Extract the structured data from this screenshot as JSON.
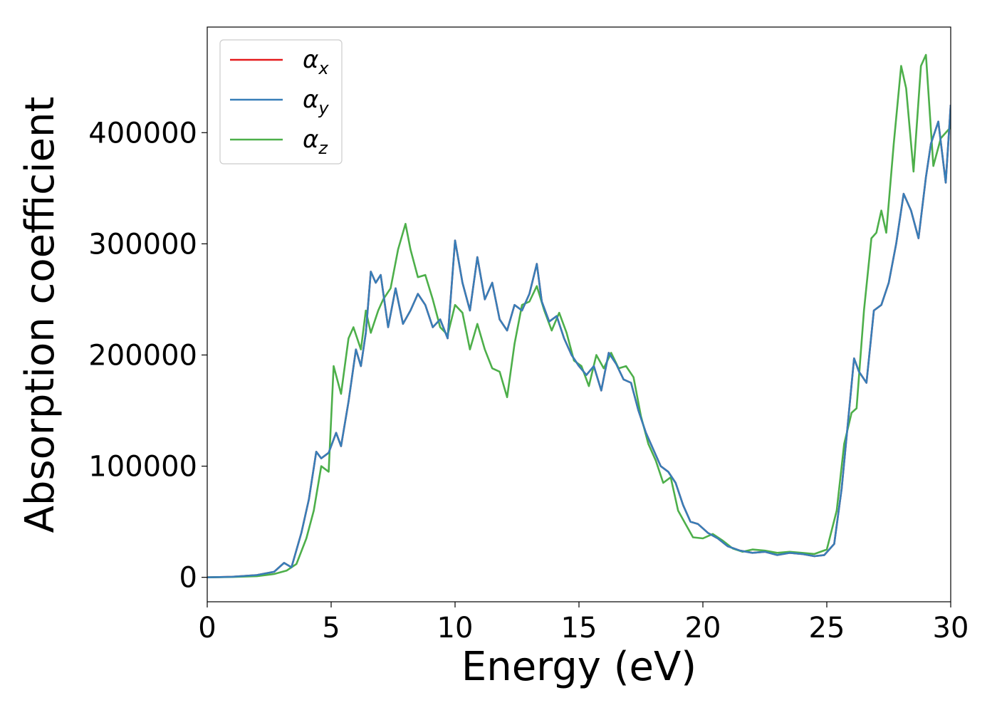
{
  "chart_data": {
    "type": "line",
    "title": "",
    "xlabel": "Energy (eV)",
    "ylabel": "Absorption coefficient",
    "xlim": [
      0,
      30
    ],
    "ylim": [
      -22000,
      495000
    ],
    "xticks": [
      0,
      5,
      10,
      15,
      20,
      25,
      30
    ],
    "yticks": [
      0,
      100000,
      200000,
      300000,
      400000
    ],
    "grid": false,
    "legend": {
      "position": "top-left",
      "frame": true
    },
    "series": [
      {
        "name": "α_x",
        "color": "#e41a1c",
        "x": [
          0,
          1,
          2,
          2.7,
          3.1,
          3.4,
          3.8,
          4.1,
          4.4,
          4.6,
          4.9,
          5.2,
          5.4,
          5.7,
          6.0,
          6.2,
          6.4,
          6.6,
          6.8,
          7.0,
          7.3,
          7.6,
          7.9,
          8.2,
          8.5,
          8.8,
          9.1,
          9.4,
          9.7,
          10.0,
          10.3,
          10.6,
          10.9,
          11.2,
          11.5,
          11.8,
          12.1,
          12.4,
          12.7,
          13.0,
          13.3,
          13.5,
          13.8,
          14.1,
          14.4,
          14.7,
          15.0,
          15.3,
          15.6,
          15.9,
          16.2,
          16.5,
          16.8,
          17.1,
          17.4,
          17.7,
          18.0,
          18.3,
          18.6,
          18.9,
          19.2,
          19.5,
          19.8,
          20.2,
          20.6,
          21.0,
          21.5,
          22.0,
          22.5,
          23.0,
          23.5,
          24.0,
          24.5,
          24.9,
          25.3,
          25.6,
          25.9,
          26.1,
          26.3,
          26.6,
          26.9,
          27.2,
          27.5,
          27.8,
          28.1,
          28.4,
          28.7,
          29.0,
          29.2,
          29.5,
          29.8,
          30.0
        ],
        "values": [
          0,
          500,
          2000,
          5000,
          13000,
          9000,
          40000,
          70000,
          113000,
          107000,
          112000,
          130000,
          118000,
          158000,
          205000,
          190000,
          220000,
          275000,
          265000,
          272000,
          225000,
          260000,
          228000,
          240000,
          255000,
          245000,
          225000,
          232000,
          215000,
          303000,
          265000,
          240000,
          288000,
          250000,
          265000,
          232000,
          222000,
          245000,
          240000,
          255000,
          282000,
          248000,
          230000,
          235000,
          215000,
          200000,
          190000,
          182000,
          190000,
          168000,
          202000,
          192000,
          178000,
          175000,
          150000,
          130000,
          115000,
          100000,
          95000,
          85000,
          65000,
          50000,
          48000,
          40000,
          35000,
          28000,
          24000,
          22000,
          23000,
          20000,
          22000,
          21000,
          19000,
          20000,
          30000,
          80000,
          150000,
          197000,
          185000,
          175000,
          240000,
          245000,
          265000,
          300000,
          345000,
          330000,
          305000,
          360000,
          390000,
          410000,
          355000,
          425000
        ]
      },
      {
        "name": "α_y",
        "color": "#377eb8",
        "x": [
          0,
          1,
          2,
          2.7,
          3.1,
          3.4,
          3.8,
          4.1,
          4.4,
          4.6,
          4.9,
          5.2,
          5.4,
          5.7,
          6.0,
          6.2,
          6.4,
          6.6,
          6.8,
          7.0,
          7.3,
          7.6,
          7.9,
          8.2,
          8.5,
          8.8,
          9.1,
          9.4,
          9.7,
          10.0,
          10.3,
          10.6,
          10.9,
          11.2,
          11.5,
          11.8,
          12.1,
          12.4,
          12.7,
          13.0,
          13.3,
          13.5,
          13.8,
          14.1,
          14.4,
          14.7,
          15.0,
          15.3,
          15.6,
          15.9,
          16.2,
          16.5,
          16.8,
          17.1,
          17.4,
          17.7,
          18.0,
          18.3,
          18.6,
          18.9,
          19.2,
          19.5,
          19.8,
          20.2,
          20.6,
          21.0,
          21.5,
          22.0,
          22.5,
          23.0,
          23.5,
          24.0,
          24.5,
          24.9,
          25.3,
          25.6,
          25.9,
          26.1,
          26.3,
          26.6,
          26.9,
          27.2,
          27.5,
          27.8,
          28.1,
          28.4,
          28.7,
          29.0,
          29.2,
          29.5,
          29.8,
          30.0
        ],
        "values": [
          0,
          500,
          2000,
          5000,
          13000,
          9000,
          40000,
          70000,
          113000,
          107000,
          112000,
          130000,
          118000,
          158000,
          205000,
          190000,
          220000,
          275000,
          265000,
          272000,
          225000,
          260000,
          228000,
          240000,
          255000,
          245000,
          225000,
          232000,
          215000,
          303000,
          265000,
          240000,
          288000,
          250000,
          265000,
          232000,
          222000,
          245000,
          240000,
          255000,
          282000,
          248000,
          230000,
          235000,
          215000,
          200000,
          190000,
          182000,
          190000,
          168000,
          202000,
          192000,
          178000,
          175000,
          150000,
          130000,
          115000,
          100000,
          95000,
          85000,
          65000,
          50000,
          48000,
          40000,
          35000,
          28000,
          24000,
          22000,
          23000,
          20000,
          22000,
          21000,
          19000,
          20000,
          30000,
          80000,
          150000,
          197000,
          185000,
          175000,
          240000,
          245000,
          265000,
          300000,
          345000,
          330000,
          305000,
          360000,
          390000,
          410000,
          355000,
          425000
        ]
      },
      {
        "name": "α_z",
        "color": "#4daf4a",
        "x": [
          0,
          1,
          2,
          2.7,
          3.2,
          3.6,
          4.0,
          4.3,
          4.6,
          4.9,
          5.1,
          5.4,
          5.7,
          5.9,
          6.2,
          6.4,
          6.6,
          6.9,
          7.1,
          7.4,
          7.7,
          8.0,
          8.2,
          8.5,
          8.8,
          9.1,
          9.4,
          9.7,
          10.0,
          10.3,
          10.6,
          10.9,
          11.2,
          11.5,
          11.8,
          12.1,
          12.4,
          12.7,
          13.0,
          13.3,
          13.6,
          13.9,
          14.2,
          14.5,
          14.8,
          15.1,
          15.4,
          15.7,
          16.0,
          16.3,
          16.6,
          16.9,
          17.2,
          17.5,
          17.8,
          18.1,
          18.4,
          18.7,
          19.0,
          19.3,
          19.6,
          20.0,
          20.4,
          20.8,
          21.2,
          21.6,
          22.0,
          22.5,
          23.0,
          23.5,
          24.0,
          24.5,
          25.0,
          25.4,
          25.7,
          26.0,
          26.2,
          26.5,
          26.8,
          27.0,
          27.2,
          27.4,
          27.7,
          28.0,
          28.2,
          28.5,
          28.8,
          29.0,
          29.3,
          29.6,
          30.0
        ],
        "values": [
          0,
          300,
          1000,
          3000,
          6000,
          12000,
          35000,
          60000,
          100000,
          95000,
          190000,
          165000,
          215000,
          225000,
          205000,
          240000,
          220000,
          240000,
          250000,
          260000,
          295000,
          318000,
          295000,
          270000,
          272000,
          250000,
          225000,
          218000,
          245000,
          238000,
          205000,
          228000,
          205000,
          188000,
          185000,
          162000,
          210000,
          245000,
          248000,
          262000,
          240000,
          222000,
          238000,
          220000,
          195000,
          190000,
          172000,
          200000,
          188000,
          202000,
          188000,
          190000,
          180000,
          145000,
          120000,
          105000,
          85000,
          90000,
          60000,
          48000,
          36000,
          35000,
          39000,
          33000,
          26000,
          23000,
          25000,
          24000,
          22000,
          23000,
          22000,
          21000,
          25000,
          60000,
          120000,
          148000,
          152000,
          240000,
          305000,
          310000,
          330000,
          310000,
          390000,
          460000,
          440000,
          365000,
          460000,
          470000,
          370000,
          395000,
          405000
        ]
      }
    ]
  }
}
